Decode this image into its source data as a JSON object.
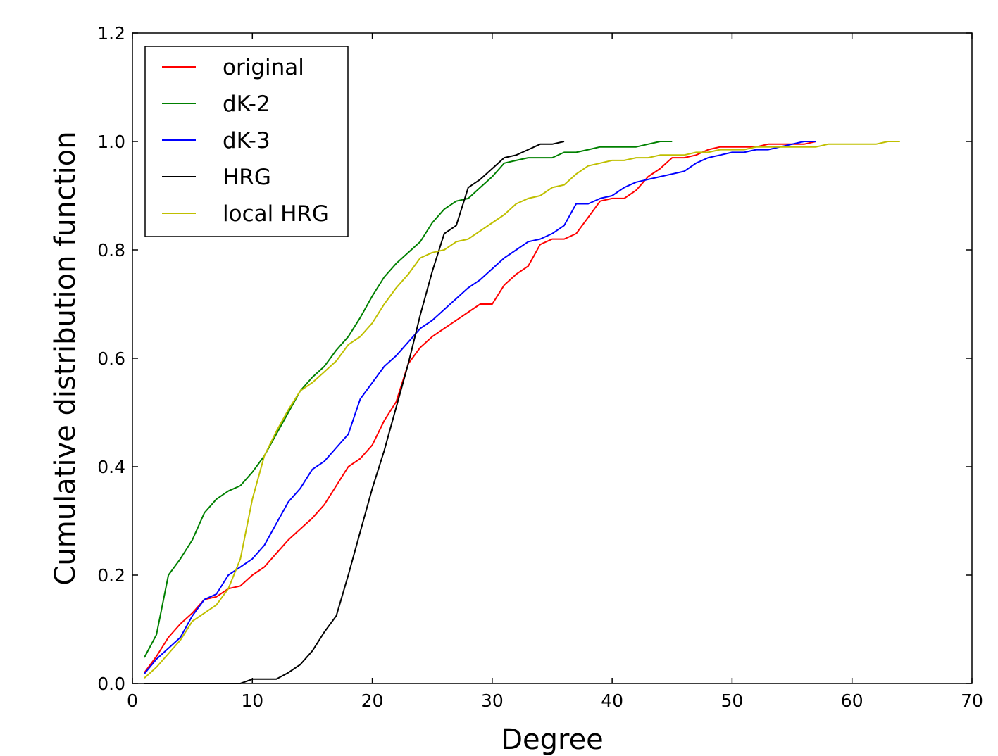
{
  "chart_data": {
    "type": "line",
    "title": "",
    "xlabel": "Degree",
    "ylabel": "Cumulative distribution function",
    "xlim": [
      0,
      70
    ],
    "ylim": [
      0,
      1.2
    ],
    "x_ticks": [
      0,
      10,
      20,
      30,
      40,
      50,
      60,
      70
    ],
    "y_ticks": [
      0.0,
      0.2,
      0.4,
      0.6,
      0.8,
      1.0,
      1.2
    ],
    "x_tick_labels": [
      "0",
      "10",
      "20",
      "30",
      "40",
      "50",
      "60",
      "70"
    ],
    "y_tick_labels": [
      "0.0",
      "0.2",
      "0.4",
      "0.6",
      "0.8",
      "1.0",
      "1.2"
    ],
    "grid": false,
    "legend_position": "upper-left",
    "series": [
      {
        "name": "original",
        "color": "#ff0000",
        "x": [
          1,
          2,
          3,
          4,
          5,
          6,
          7,
          8,
          9,
          10,
          11,
          12,
          13,
          14,
          15,
          16,
          17,
          18,
          19,
          20,
          21,
          22,
          23,
          24,
          25,
          26,
          27,
          28,
          29,
          30,
          31,
          32,
          33,
          34,
          35,
          36,
          37,
          38,
          39,
          40,
          41,
          42,
          43,
          44,
          45,
          46,
          47,
          48,
          49,
          50,
          51,
          52,
          53,
          54,
          55,
          56,
          57
        ],
        "y": [
          0.02,
          0.05,
          0.085,
          0.11,
          0.13,
          0.155,
          0.16,
          0.175,
          0.18,
          0.2,
          0.215,
          0.24,
          0.265,
          0.285,
          0.305,
          0.33,
          0.365,
          0.4,
          0.415,
          0.44,
          0.485,
          0.52,
          0.59,
          0.62,
          0.64,
          0.655,
          0.67,
          0.685,
          0.7,
          0.7,
          0.735,
          0.755,
          0.77,
          0.81,
          0.82,
          0.82,
          0.83,
          0.86,
          0.89,
          0.895,
          0.895,
          0.91,
          0.935,
          0.95,
          0.97,
          0.97,
          0.975,
          0.985,
          0.99,
          0.99,
          0.99,
          0.99,
          0.995,
          0.995,
          0.995,
          0.995,
          1.0
        ]
      },
      {
        "name": "dK-2",
        "color": "#008000",
        "x": [
          1,
          2,
          3,
          4,
          5,
          6,
          7,
          8,
          9,
          10,
          11,
          12,
          13,
          14,
          15,
          16,
          17,
          18,
          19,
          20,
          21,
          22,
          23,
          24,
          25,
          26,
          27,
          28,
          29,
          30,
          31,
          32,
          33,
          34,
          35,
          36,
          37,
          38,
          39,
          40,
          41,
          42,
          43,
          44,
          45
        ],
        "y": [
          0.048,
          0.09,
          0.2,
          0.23,
          0.265,
          0.315,
          0.34,
          0.355,
          0.365,
          0.39,
          0.42,
          0.46,
          0.5,
          0.54,
          0.565,
          0.585,
          0.615,
          0.64,
          0.675,
          0.715,
          0.75,
          0.775,
          0.795,
          0.815,
          0.85,
          0.875,
          0.89,
          0.895,
          0.915,
          0.935,
          0.96,
          0.965,
          0.97,
          0.97,
          0.97,
          0.98,
          0.98,
          0.985,
          0.99,
          0.99,
          0.99,
          0.99,
          0.995,
          1.0,
          1.0
        ]
      },
      {
        "name": "dK-3",
        "color": "#0000ff",
        "x": [
          1,
          2,
          3,
          4,
          5,
          6,
          7,
          8,
          9,
          10,
          11,
          12,
          13,
          14,
          15,
          16,
          17,
          18,
          19,
          20,
          21,
          22,
          23,
          24,
          25,
          26,
          27,
          28,
          29,
          30,
          31,
          32,
          33,
          34,
          35,
          36,
          37,
          38,
          39,
          40,
          41,
          42,
          43,
          44,
          45,
          46,
          47,
          48,
          49,
          50,
          51,
          52,
          53,
          54,
          55,
          56,
          57
        ],
        "y": [
          0.018,
          0.045,
          0.065,
          0.085,
          0.125,
          0.155,
          0.165,
          0.2,
          0.215,
          0.23,
          0.255,
          0.295,
          0.335,
          0.36,
          0.395,
          0.41,
          0.435,
          0.46,
          0.525,
          0.555,
          0.585,
          0.605,
          0.63,
          0.655,
          0.67,
          0.69,
          0.71,
          0.73,
          0.745,
          0.765,
          0.785,
          0.8,
          0.815,
          0.82,
          0.83,
          0.845,
          0.885,
          0.885,
          0.895,
          0.9,
          0.915,
          0.925,
          0.93,
          0.935,
          0.94,
          0.945,
          0.96,
          0.97,
          0.975,
          0.98,
          0.98,
          0.985,
          0.985,
          0.99,
          0.995,
          1.0,
          1.0
        ]
      },
      {
        "name": "HRG",
        "color": "#000000",
        "x": [
          1,
          5,
          9,
          10,
          11,
          12,
          13,
          14,
          15,
          16,
          17,
          18,
          19,
          20,
          21,
          22,
          23,
          24,
          25,
          26,
          27,
          28,
          29,
          30,
          31,
          32,
          33,
          34,
          35,
          36
        ],
        "y": [
          0.0,
          0.0,
          0.0,
          0.008,
          0.008,
          0.008,
          0.02,
          0.035,
          0.06,
          0.095,
          0.125,
          0.2,
          0.28,
          0.36,
          0.43,
          0.51,
          0.59,
          0.68,
          0.76,
          0.83,
          0.845,
          0.915,
          0.93,
          0.95,
          0.97,
          0.975,
          0.985,
          0.995,
          0.995,
          1.0
        ]
      },
      {
        "name": "local HRG",
        "color": "#bfbf00",
        "x": [
          1,
          2,
          3,
          4,
          5,
          6,
          7,
          8,
          9,
          10,
          11,
          12,
          13,
          14,
          15,
          16,
          17,
          18,
          19,
          20,
          21,
          22,
          23,
          24,
          25,
          26,
          27,
          28,
          29,
          30,
          31,
          32,
          33,
          34,
          35,
          36,
          37,
          38,
          39,
          40,
          41,
          42,
          43,
          44,
          45,
          46,
          47,
          48,
          49,
          50,
          51,
          52,
          53,
          54,
          55,
          56,
          57,
          58,
          59,
          60,
          61,
          62,
          63,
          64
        ],
        "y": [
          0.01,
          0.03,
          0.055,
          0.08,
          0.115,
          0.13,
          0.145,
          0.175,
          0.23,
          0.34,
          0.42,
          0.465,
          0.505,
          0.54,
          0.555,
          0.575,
          0.595,
          0.625,
          0.64,
          0.665,
          0.7,
          0.73,
          0.755,
          0.785,
          0.795,
          0.8,
          0.815,
          0.82,
          0.835,
          0.85,
          0.865,
          0.885,
          0.895,
          0.9,
          0.915,
          0.92,
          0.94,
          0.955,
          0.96,
          0.965,
          0.965,
          0.97,
          0.97,
          0.975,
          0.975,
          0.975,
          0.98,
          0.98,
          0.985,
          0.985,
          0.985,
          0.99,
          0.99,
          0.99,
          0.99,
          0.99,
          0.99,
          0.995,
          0.995,
          0.995,
          0.995,
          0.995,
          1.0,
          1.0
        ]
      }
    ]
  }
}
